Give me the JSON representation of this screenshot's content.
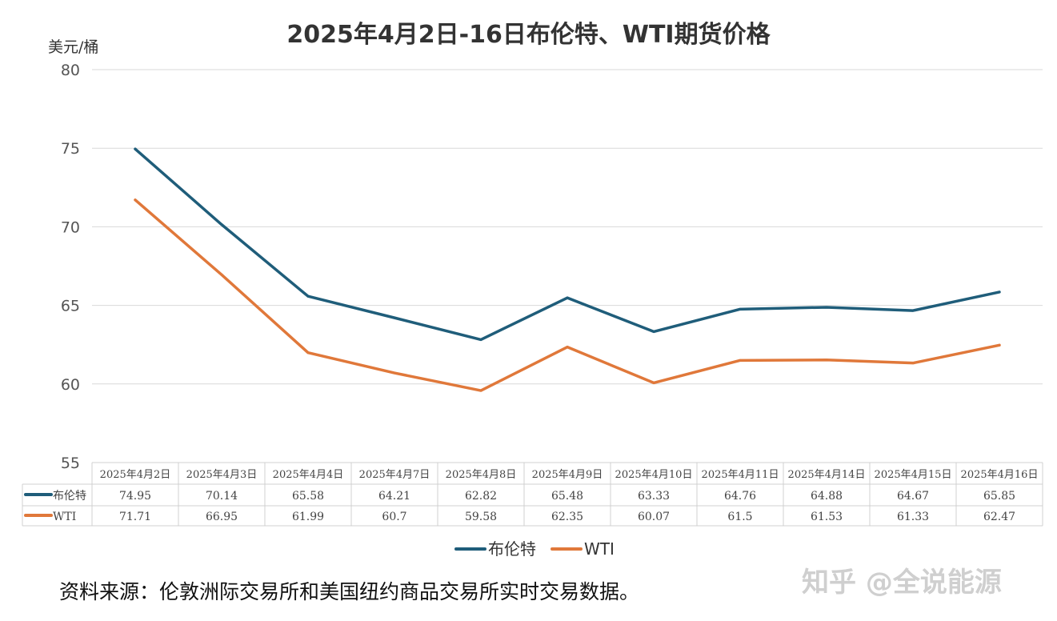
{
  "chart_data": {
    "type": "line",
    "title": "2025年4月2日-16日布伦特、WTI期货价格",
    "ylabel": "美元/桶",
    "ylim": [
      55,
      80
    ],
    "yticks": [
      55,
      60,
      65,
      70,
      75,
      80
    ],
    "grid": true,
    "legend_placement": "bottom",
    "categories": [
      "2025年4月2日",
      "2025年4月3日",
      "2025年4月4日",
      "2025年4月7日",
      "2025年4月8日",
      "2025年4月9日",
      "2025年4月10日",
      "2025年4月11日",
      "2025年4月14日",
      "2025年4月15日",
      "2025年4月16日"
    ],
    "series": [
      {
        "name": "布伦特",
        "color": "#1f5d7a",
        "values": [
          "74.95",
          "70.14",
          "65.58",
          "64.21",
          "62.82",
          "65.48",
          "63.33",
          "64.76",
          "64.88",
          "64.67",
          "65.85"
        ]
      },
      {
        "name": "WTI",
        "color": "#e0783a",
        "values": [
          "71.71",
          "66.95",
          "61.99",
          "60.7",
          "59.58",
          "62.35",
          "60.07",
          "61.5",
          "61.53",
          "61.33",
          "62.47"
        ]
      }
    ],
    "data_table": true
  },
  "source": "资料来源：伦敦洲际交易所和美国纽约商品交易所实时交易数据。",
  "watermark": "知乎 @全说能源"
}
